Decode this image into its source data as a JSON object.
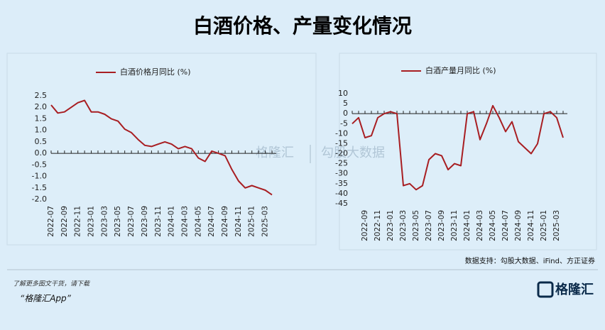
{
  "header": {
    "title": "白酒价格、产量变化情况"
  },
  "chart_data": [
    {
      "type": "line",
      "categories": [
        "2022-07",
        null,
        "2022-09",
        null,
        "2022-11",
        null,
        "2023-01",
        null,
        "2023-03",
        null,
        "2023-05",
        null,
        "2023-07",
        null,
        "2023-09",
        null,
        "2023-11",
        null,
        "2024-01",
        null,
        "2024-03",
        null,
        "2024-05",
        null,
        "2024-07",
        null,
        "2024-09",
        null,
        "2024-11",
        null,
        "2025-01",
        null,
        "2025-03",
        null
      ],
      "series": [
        {
          "name": "白酒价格月同比 (%)",
          "color": "#a81e22",
          "values": [
            2.1,
            1.75,
            1.8,
            2.0,
            2.2,
            2.3,
            1.8,
            1.8,
            1.7,
            1.5,
            1.4,
            1.05,
            0.9,
            0.6,
            0.35,
            0.3,
            0.4,
            0.5,
            0.4,
            0.2,
            0.3,
            0.2,
            -0.2,
            -0.35,
            0.1,
            0.0,
            -0.1,
            -0.7,
            -1.2,
            -1.5,
            -1.4,
            -1.5,
            -1.6,
            -1.8
          ]
        }
      ],
      "ylim": [
        -2,
        2.5
      ],
      "yticks": [
        2.5,
        {
          "value": 2,
          "label": "2.0"
        },
        1.5,
        {
          "value": 1,
          "label": "1.0"
        },
        0.5,
        {
          "value": 0,
          "label": "0.0"
        },
        -0.5,
        {
          "value": -1,
          "label": "-1.0"
        },
        -1.5,
        {
          "value": -2,
          "label": "-2.0"
        }
      ]
    },
    {
      "type": "line",
      "categories": [
        null,
        null,
        "2022-09",
        null,
        "2022-11",
        null,
        "2023-01",
        null,
        "2023-03",
        null,
        "2023-05",
        null,
        "2023-07",
        null,
        "2023-09",
        null,
        "2023-11",
        null,
        "2024-01",
        null,
        "2024-03",
        null,
        "2024-05",
        null,
        "2024-07",
        null,
        "2024-09",
        null,
        "2024-11",
        null,
        "2025-01",
        null,
        "2025-03",
        null
      ],
      "series": [
        {
          "name": "白酒产量月同比 (%)",
          "color": "#a81e22",
          "values": [
            -5,
            -2,
            -12,
            -11,
            -2,
            0,
            1,
            0,
            -36,
            -35,
            -38,
            -36,
            -23,
            -20,
            -21,
            -28,
            -25,
            -26,
            0,
            1,
            -13,
            -5,
            4,
            -2,
            -9,
            -4,
            -14,
            -17,
            -20,
            -15,
            0,
            1,
            -2,
            -12
          ]
        }
      ],
      "ylim": [
        -45,
        10
      ],
      "yticks": [
        10,
        5,
        0,
        -5,
        -10,
        -15,
        -20,
        -25,
        -30,
        -35,
        -40,
        -45
      ]
    }
  ],
  "source": "数据支持：勾股大数据、iFind、方正证券",
  "watermark": {
    "left": "格隆汇",
    "right": "勾股大数据"
  },
  "footer": {
    "line1": "了解更多图文干货，请下载",
    "line2": "“格隆汇App”",
    "logo": "格隆汇"
  }
}
